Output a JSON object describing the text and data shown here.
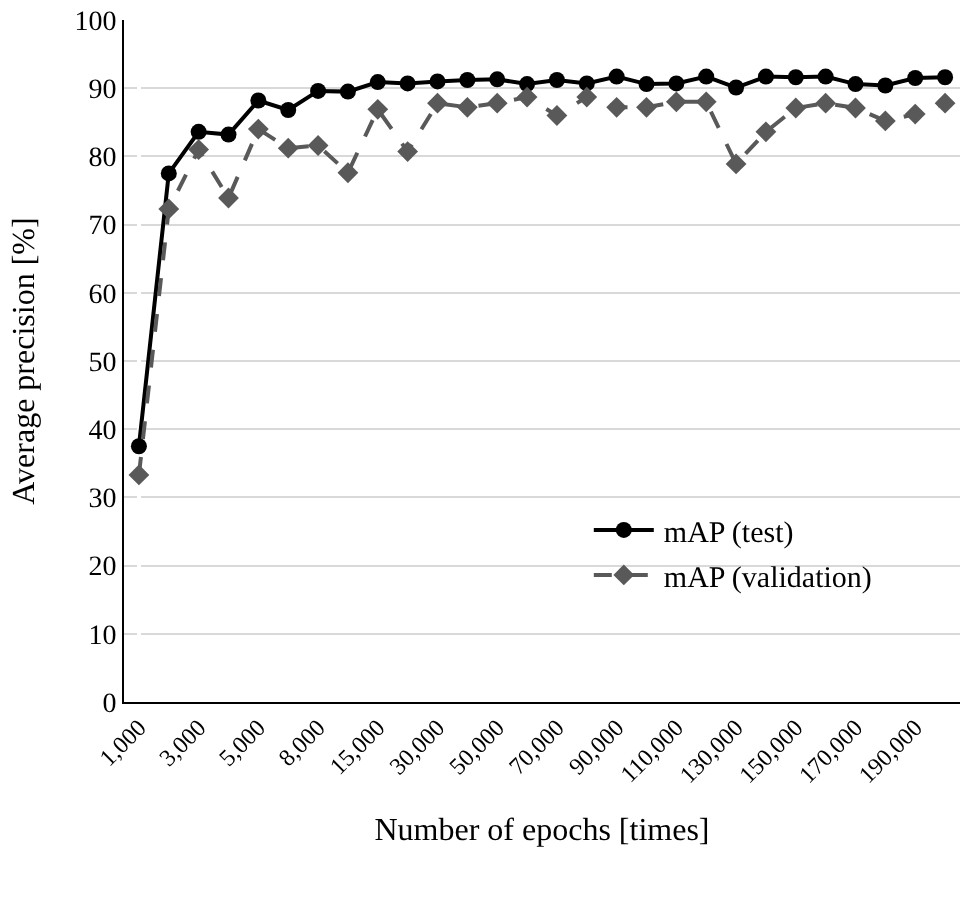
{
  "chart_data": {
    "type": "line",
    "xlabel": "Number of epochs [times]",
    "ylabel": "Average precision [%]",
    "categories": [
      "1,000",
      null,
      "3,000",
      null,
      "5,000",
      null,
      "8,000",
      null,
      "15,000",
      null,
      "30,000",
      null,
      "50,000",
      null,
      "70,000",
      null,
      "90,000",
      null,
      "110,000",
      null,
      "130,000",
      null,
      "150,000",
      null,
      "170,000",
      null,
      "190,000",
      null
    ],
    "series": [
      {
        "name": "mAP (test)",
        "color": "#000000",
        "marker": "circle",
        "line_style": "solid",
        "values": [
          37.5,
          77.5,
          83.6,
          83.2,
          88.2,
          86.8,
          89.6,
          89.5,
          90.9,
          90.7,
          91.0,
          91.2,
          91.3,
          90.6,
          91.2,
          90.7,
          91.7,
          90.6,
          90.7,
          91.7,
          90.1,
          91.7,
          91.6,
          91.7,
          90.6,
          90.4,
          91.5,
          91.6
        ]
      },
      {
        "name": "mAP (validation)",
        "color": "#595959",
        "marker": "diamond",
        "line_style": "dashed",
        "values": [
          33.3,
          72.3,
          81.0,
          73.9,
          84.0,
          81.2,
          81.6,
          77.6,
          86.9,
          80.7,
          87.8,
          87.2,
          87.8,
          88.7,
          86.0,
          88.7,
          87.2,
          87.2,
          88.0,
          88.0,
          78.9,
          83.6,
          87.1,
          87.8,
          87.1,
          85.2,
          86.2,
          87.8
        ]
      }
    ],
    "ylim": [
      0,
      100
    ],
    "yticks": [
      0,
      10,
      20,
      30,
      40,
      50,
      60,
      70,
      80,
      90,
      100
    ],
    "grid": "y",
    "legend": "bottom right"
  }
}
